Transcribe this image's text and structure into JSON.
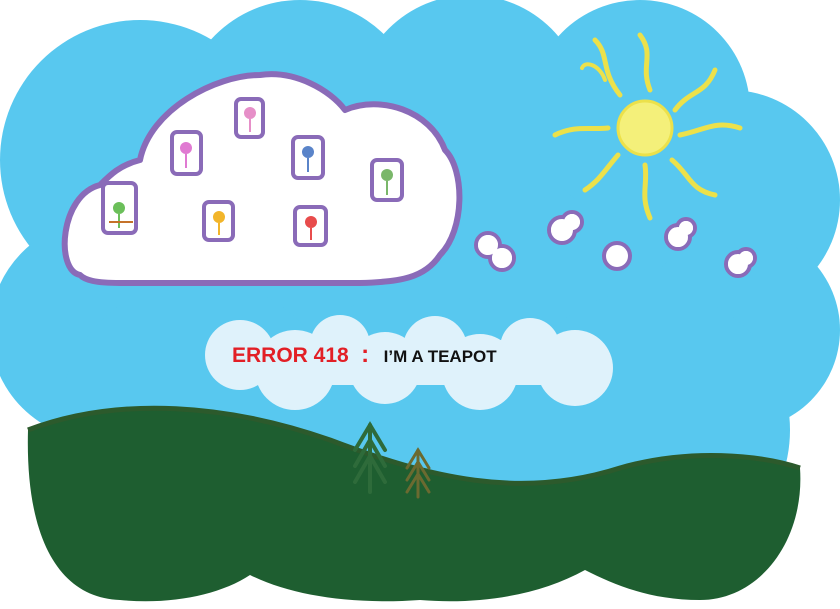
{
  "error": {
    "code": "ERROR 418",
    "separator": ":",
    "message": "I’M A TEAPOT"
  },
  "illustration": {
    "sky_color": "#58c8ef",
    "sky_outline_color": "#ffffff",
    "hill_color": "#1e5e30",
    "hill_edge_color": "#2c5a2c",
    "cloud_outline_color": "#8a6bb8",
    "sun_color": "#f4f07a",
    "sun_ray_color": "#ece14a",
    "error_code_color": "#e21f26",
    "message_color": "#111111",
    "tree_colors": [
      "#2e6b3a",
      "#6b6a30"
    ],
    "face_colors": [
      "#e07ad2",
      "#e68fc8",
      "#5a84c9",
      "#7ab76a",
      "#6bbf5a",
      "#f2b52a",
      "#e84c4c"
    ],
    "icons": [
      "sun-icon",
      "pine-tree-icon",
      "cloud-icon",
      "stick-figure-icon"
    ]
  }
}
